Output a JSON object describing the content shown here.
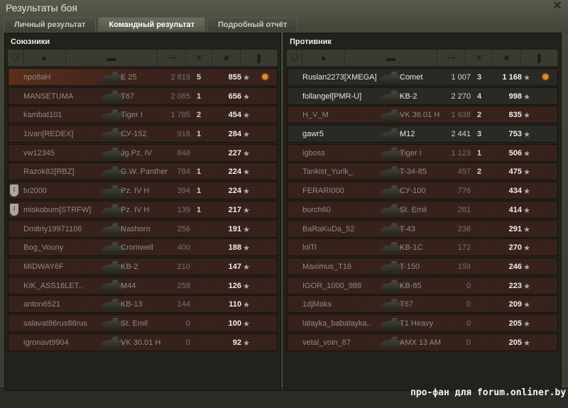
{
  "window": {
    "title": "Результаты боя",
    "close_icon": "close-icon"
  },
  "tabs": [
    {
      "label": "Личный результат",
      "active": false
    },
    {
      "label": "Командный результат",
      "active": true
    },
    {
      "label": "Подробный отчёт",
      "active": false
    }
  ],
  "columns": [
    "platoon-icon",
    "player-icon",
    "tank-icon",
    "damage-icon",
    "kills-icon",
    "experience-star-icon",
    "medal-icon"
  ],
  "allies": {
    "title": "Союзники",
    "rows": [
      {
        "name": "про8аН",
        "tank": "E 25",
        "damage": "2 819",
        "kills": "5",
        "xp": "855",
        "status": "player",
        "medal": true
      },
      {
        "name": "MANSETUMA",
        "tank": "T67",
        "damage": "2 065",
        "kills": "1",
        "xp": "656",
        "status": "dead"
      },
      {
        "name": "kambat101",
        "tank": "Tiger I",
        "damage": "1 785",
        "kills": "2",
        "xp": "454",
        "status": "dead"
      },
      {
        "name": "1ivan[REDEX]",
        "tank": "СУ-152",
        "damage": "918",
        "kills": "1",
        "xp": "284",
        "status": "dead"
      },
      {
        "name": "vw12345",
        "tank": "Jg.Pz. IV",
        "damage": "848",
        "kills": "",
        "xp": "227",
        "status": "dead"
      },
      {
        "name": "Razok82[RBZ]",
        "tank": "G.W. Panther",
        "damage": "784",
        "kills": "1",
        "xp": "224",
        "status": "dead"
      },
      {
        "name": "tv2000",
        "tank": "Pz. IV H",
        "damage": "394",
        "kills": "1",
        "xp": "224",
        "status": "dead",
        "platoon": "I"
      },
      {
        "name": "miskobum[STRFW]",
        "tank": "Pz. IV H",
        "damage": "139",
        "kills": "1",
        "xp": "217",
        "status": "dead",
        "platoon": "I"
      },
      {
        "name": "Dmitriy19971106",
        "tank": "Nashorn",
        "damage": "256",
        "kills": "",
        "xp": "191",
        "status": "dead"
      },
      {
        "name": "Bog_Vouny",
        "tank": "Cromwell",
        "damage": "400",
        "kills": "",
        "xp": "188",
        "status": "dead"
      },
      {
        "name": "MIDWAY6F",
        "tank": "KB-2",
        "damage": "210",
        "kills": "",
        "xp": "147",
        "status": "dead"
      },
      {
        "name": "KIK_ASS16LET..",
        "tank": "M44",
        "damage": "258",
        "kills": "",
        "xp": "126",
        "status": "dead"
      },
      {
        "name": "anton6521",
        "tank": "KB-13",
        "damage": "144",
        "kills": "",
        "xp": "110",
        "status": "dead"
      },
      {
        "name": "salavat86rus86rus",
        "tank": "St. Emil",
        "damage": "0",
        "kills": "",
        "xp": "100",
        "status": "dead"
      },
      {
        "name": "igronavt9904",
        "tank": "VK 30.01 H",
        "damage": "0",
        "kills": "",
        "xp": "92",
        "status": "dead"
      }
    ]
  },
  "enemies": {
    "title": "Противник",
    "rows": [
      {
        "name": "Ruslan2273[XMEGA]",
        "tank": "Comet",
        "damage": "1 007",
        "kills": "3",
        "xp": "1 168",
        "status": "alive",
        "medal": true
      },
      {
        "name": "follangel[PMR-U]",
        "tank": "KB-2",
        "damage": "2 270",
        "kills": "4",
        "xp": "998",
        "status": "alive"
      },
      {
        "name": "H_V_M",
        "tank": "VK 36.01 H",
        "damage": "1 638",
        "kills": "2",
        "xp": "835",
        "status": "dead"
      },
      {
        "name": "gawr5",
        "tank": "M12",
        "damage": "2 441",
        "kills": "3",
        "xp": "753",
        "status": "alive"
      },
      {
        "name": "igboss",
        "tank": "Tiger I",
        "damage": "1 123",
        "kills": "1",
        "xp": "506",
        "status": "dead"
      },
      {
        "name": "Tankist_Yurik_",
        "tank": "T-34-85",
        "damage": "457",
        "kills": "2",
        "xp": "475",
        "status": "dead"
      },
      {
        "name": "FERARI000",
        "tank": "СУ-100",
        "damage": "776",
        "kills": "",
        "xp": "434",
        "status": "dead"
      },
      {
        "name": "burch60",
        "tank": "St. Emil",
        "damage": "281",
        "kills": "",
        "xp": "414",
        "status": "dead"
      },
      {
        "name": "BaRaKuDa_52",
        "tank": "T-43",
        "damage": "236",
        "kills": "",
        "xp": "291",
        "status": "dead"
      },
      {
        "name": "lolTi",
        "tank": "KB-1C",
        "damage": "172",
        "kills": "",
        "xp": "270",
        "status": "dead"
      },
      {
        "name": "Maximus_T16",
        "tank": "T-150",
        "damage": "159",
        "kills": "",
        "xp": "246",
        "status": "dead"
      },
      {
        "name": "IGOR_1000_988",
        "tank": "KB-85",
        "damage": "0",
        "kills": "",
        "xp": "223",
        "status": "dead"
      },
      {
        "name": "1djMaks",
        "tank": "T67",
        "damage": "0",
        "kills": "",
        "xp": "209",
        "status": "dead"
      },
      {
        "name": "lalayka_babalayka..",
        "tank": "T1 Heavy",
        "damage": "0",
        "kills": "",
        "xp": "205",
        "status": "dead"
      },
      {
        "name": "vetal_voin_87",
        "tank": "AMX 13 AM",
        "damage": "0",
        "kills": "",
        "xp": "205",
        "status": "dead"
      }
    ]
  },
  "watermark": "про-фан для forum.onliner.by"
}
